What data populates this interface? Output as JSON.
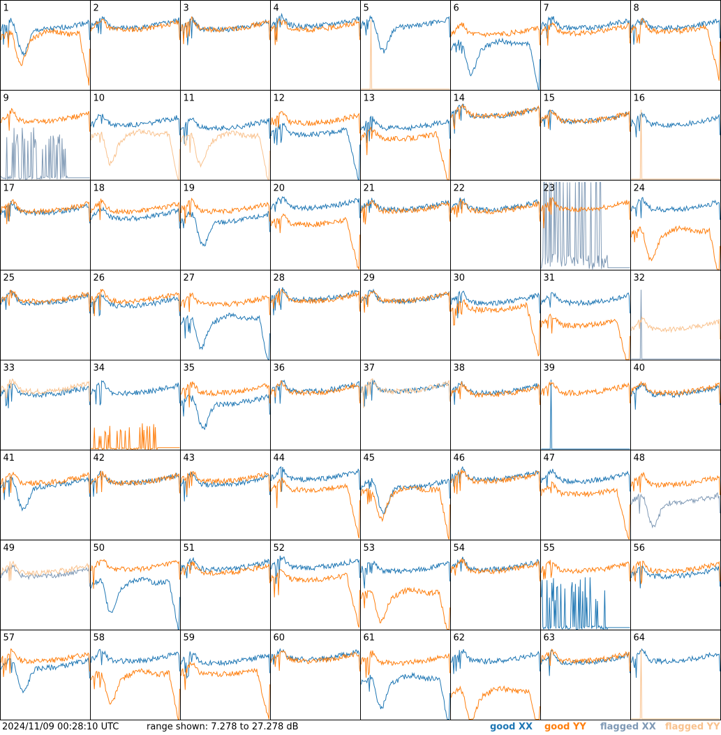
{
  "footer": {
    "timestamp": "2024/11/09 00:28:10 UTC",
    "range_text": "range shown: 7.278 to 27.278 dB",
    "legend": {
      "good_xx": "good XX",
      "good_yy": "good YY",
      "flagged_xx": "flagged XX",
      "flagged_yy": "flagged YY"
    }
  },
  "colors": {
    "good_xx": "#1f77b4",
    "good_yy": "#ff7f0e",
    "flagged_xx": "#7f99b5",
    "flagged_yy": "#f9c28e"
  },
  "chart_data": {
    "type": "line",
    "layout": "8x8 small-multiples, one panel per antenna tile",
    "ylim": [
      7.278,
      27.278
    ],
    "yunit": "dB",
    "panels": [
      {
        "label": "1",
        "xx": {
          "shape": "dip",
          "level": 0.72,
          "flag": false
        },
        "yy": {
          "shape": "dip_roll",
          "level": 0.62,
          "flag": false
        }
      },
      {
        "label": "2",
        "xx": {
          "shape": "normal",
          "level": 0.74,
          "flag": false
        },
        "yy": {
          "shape": "normal",
          "level": 0.72,
          "flag": false
        }
      },
      {
        "label": "3",
        "xx": {
          "shape": "normal",
          "level": 0.72,
          "flag": false
        },
        "yy": {
          "shape": "normal",
          "level": 0.72,
          "flag": false
        }
      },
      {
        "label": "4",
        "xx": {
          "shape": "normal",
          "level": 0.76,
          "flag": false
        },
        "yy": {
          "shape": "normal",
          "level": 0.72,
          "flag": false
        }
      },
      {
        "label": "5",
        "xx": {
          "shape": "dip",
          "level": 0.75,
          "flag": false
        },
        "yy": {
          "shape": "dead",
          "level": 0.0,
          "flag": true
        }
      },
      {
        "label": "6",
        "xx": {
          "shape": "dip_roll",
          "level": 0.5,
          "flag": false
        },
        "yy": {
          "shape": "normal",
          "level": 0.66,
          "flag": false
        }
      },
      {
        "label": "7",
        "xx": {
          "shape": "normal",
          "level": 0.74,
          "flag": false
        },
        "yy": {
          "shape": "normal",
          "level": 0.68,
          "flag": false
        }
      },
      {
        "label": "8",
        "xx": {
          "shape": "normal",
          "level": 0.74,
          "flag": false
        },
        "yy": {
          "shape": "roll",
          "level": 0.7,
          "flag": false
        }
      },
      {
        "label": "9",
        "xx": {
          "shape": "spiky_low",
          "level": 0.1,
          "flag": true
        },
        "yy": {
          "shape": "normal",
          "level": 0.7,
          "flag": false
        }
      },
      {
        "label": "10",
        "xx": {
          "shape": "normal",
          "level": 0.66,
          "flag": false
        },
        "yy": {
          "shape": "dip_roll",
          "level": 0.5,
          "flag": true
        }
      },
      {
        "label": "11",
        "xx": {
          "shape": "normal",
          "level": 0.62,
          "flag": false
        },
        "yy": {
          "shape": "dip_roll",
          "level": 0.48,
          "flag": true
        }
      },
      {
        "label": "12",
        "xx": {
          "shape": "roll",
          "level": 0.55,
          "flag": false
        },
        "yy": {
          "shape": "normal",
          "level": 0.68,
          "flag": false
        }
      },
      {
        "label": "13",
        "xx": {
          "shape": "normal",
          "level": 0.62,
          "flag": false
        },
        "yy": {
          "shape": "roll",
          "level": 0.5,
          "flag": false
        }
      },
      {
        "label": "14",
        "xx": {
          "shape": "normal",
          "level": 0.76,
          "flag": false
        },
        "yy": {
          "shape": "normal",
          "level": 0.76,
          "flag": false
        }
      },
      {
        "label": "15",
        "xx": {
          "shape": "normal",
          "level": 0.7,
          "flag": false
        },
        "yy": {
          "shape": "normal",
          "level": 0.7,
          "flag": false
        }
      },
      {
        "label": "16",
        "xx": {
          "shape": "normal",
          "level": 0.66,
          "flag": false
        },
        "yy": {
          "shape": "dead",
          "level": 0.0,
          "flag": true
        }
      },
      {
        "label": "17",
        "xx": {
          "shape": "normal",
          "level": 0.68,
          "flag": false
        },
        "yy": {
          "shape": "normal",
          "level": 0.7,
          "flag": false
        }
      },
      {
        "label": "18",
        "xx": {
          "shape": "normal",
          "level": 0.62,
          "flag": false
        },
        "yy": {
          "shape": "normal",
          "level": 0.7,
          "flag": false
        }
      },
      {
        "label": "19",
        "xx": {
          "shape": "dip",
          "level": 0.58,
          "flag": false
        },
        "yy": {
          "shape": "normal",
          "level": 0.7,
          "flag": false
        }
      },
      {
        "label": "20",
        "xx": {
          "shape": "normal",
          "level": 0.74,
          "flag": false
        },
        "yy": {
          "shape": "roll",
          "level": 0.55,
          "flag": false
        }
      },
      {
        "label": "21",
        "xx": {
          "shape": "normal",
          "level": 0.72,
          "flag": false
        },
        "yy": {
          "shape": "normal",
          "level": 0.7,
          "flag": false
        }
      },
      {
        "label": "22",
        "xx": {
          "shape": "normal",
          "level": 0.72,
          "flag": false
        },
        "yy": {
          "shape": "normal",
          "level": 0.7,
          "flag": false
        }
      },
      {
        "label": "23",
        "xx": {
          "shape": "spiky_low",
          "level": 0.45,
          "flag": true
        },
        "yy": {
          "shape": "normal",
          "level": 0.72,
          "flag": false
        }
      },
      {
        "label": "24",
        "xx": {
          "shape": "normal",
          "level": 0.72,
          "flag": false
        },
        "yy": {
          "shape": "dip_roll",
          "level": 0.42,
          "flag": false
        }
      },
      {
        "label": "25",
        "xx": {
          "shape": "normal",
          "level": 0.68,
          "flag": false
        },
        "yy": {
          "shape": "normal",
          "level": 0.7,
          "flag": false
        }
      },
      {
        "label": "26",
        "xx": {
          "shape": "normal",
          "level": 0.65,
          "flag": false
        },
        "yy": {
          "shape": "normal",
          "level": 0.7,
          "flag": false
        }
      },
      {
        "label": "27",
        "xx": {
          "shape": "dip_roll",
          "level": 0.45,
          "flag": false
        },
        "yy": {
          "shape": "normal",
          "level": 0.66,
          "flag": false
        }
      },
      {
        "label": "28",
        "xx": {
          "shape": "normal",
          "level": 0.72,
          "flag": false
        },
        "yy": {
          "shape": "normal",
          "level": 0.7,
          "flag": false
        }
      },
      {
        "label": "29",
        "xx": {
          "shape": "normal",
          "level": 0.7,
          "flag": false
        },
        "yy": {
          "shape": "normal",
          "level": 0.7,
          "flag": false
        }
      },
      {
        "label": "30",
        "xx": {
          "shape": "normal",
          "level": 0.68,
          "flag": false
        },
        "yy": {
          "shape": "roll",
          "level": 0.6,
          "flag": false
        }
      },
      {
        "label": "31",
        "xx": {
          "shape": "normal",
          "level": 0.68,
          "flag": false
        },
        "yy": {
          "shape": "roll",
          "level": 0.42,
          "flag": false
        }
      },
      {
        "label": "32",
        "xx": {
          "shape": "dead",
          "level": 0.0,
          "flag": true
        },
        "yy": {
          "shape": "normal",
          "level": 0.38,
          "flag": true
        }
      },
      {
        "label": "33",
        "xx": {
          "shape": "normal",
          "level": 0.66,
          "flag": false
        },
        "yy": {
          "shape": "normal",
          "level": 0.7,
          "flag": true
        }
      },
      {
        "label": "34",
        "xx": {
          "shape": "normal",
          "level": 0.68,
          "flag": false
        },
        "yy": {
          "shape": "spiky_low",
          "level": 0.05,
          "flag": false
        }
      },
      {
        "label": "35",
        "xx": {
          "shape": "dip",
          "level": 0.55,
          "flag": false
        },
        "yy": {
          "shape": "normal",
          "level": 0.68,
          "flag": false
        }
      },
      {
        "label": "36",
        "xx": {
          "shape": "normal",
          "level": 0.7,
          "flag": false
        },
        "yy": {
          "shape": "normal",
          "level": 0.68,
          "flag": false
        }
      },
      {
        "label": "37",
        "xx": {
          "shape": "normal",
          "level": 0.7,
          "flag": false
        },
        "yy": {
          "shape": "normal",
          "level": 0.7,
          "flag": true
        }
      },
      {
        "label": "38",
        "xx": {
          "shape": "normal",
          "level": 0.68,
          "flag": false
        },
        "yy": {
          "shape": "normal",
          "level": 0.66,
          "flag": false
        }
      },
      {
        "label": "39",
        "xx": {
          "shape": "dead",
          "level": 0.0,
          "flag": false
        },
        "yy": {
          "shape": "normal",
          "level": 0.68,
          "flag": false
        }
      },
      {
        "label": "40",
        "xx": {
          "shape": "normal",
          "level": 0.66,
          "flag": false
        },
        "yy": {
          "shape": "normal",
          "level": 0.68,
          "flag": false
        }
      },
      {
        "label": "41",
        "xx": {
          "shape": "dip",
          "level": 0.64,
          "flag": false
        },
        "yy": {
          "shape": "normal",
          "level": 0.68,
          "flag": false
        }
      },
      {
        "label": "42",
        "xx": {
          "shape": "normal",
          "level": 0.68,
          "flag": false
        },
        "yy": {
          "shape": "normal",
          "level": 0.68,
          "flag": false
        }
      },
      {
        "label": "43",
        "xx": {
          "shape": "normal",
          "level": 0.66,
          "flag": false
        },
        "yy": {
          "shape": "normal",
          "level": 0.7,
          "flag": false
        }
      },
      {
        "label": "44",
        "xx": {
          "shape": "normal",
          "level": 0.72,
          "flag": false
        },
        "yy": {
          "shape": "roll",
          "level": 0.6,
          "flag": false
        }
      },
      {
        "label": "45",
        "xx": {
          "shape": "dip",
          "level": 0.62,
          "flag": false
        },
        "yy": {
          "shape": "dip_roll",
          "level": 0.55,
          "flag": false
        }
      },
      {
        "label": "46",
        "xx": {
          "shape": "normal",
          "level": 0.72,
          "flag": false
        },
        "yy": {
          "shape": "normal",
          "level": 0.7,
          "flag": false
        }
      },
      {
        "label": "47",
        "xx": {
          "shape": "normal",
          "level": 0.7,
          "flag": false
        },
        "yy": {
          "shape": "roll",
          "level": 0.55,
          "flag": false
        }
      },
      {
        "label": "48",
        "xx": {
          "shape": "dip",
          "level": 0.45,
          "flag": true
        },
        "yy": {
          "shape": "normal",
          "level": 0.66,
          "flag": false
        }
      },
      {
        "label": "49",
        "xx": {
          "shape": "normal",
          "level": 0.64,
          "flag": true
        },
        "yy": {
          "shape": "normal",
          "level": 0.68,
          "flag": true
        }
      },
      {
        "label": "50",
        "xx": {
          "shape": "dip_roll",
          "level": 0.52,
          "flag": false
        },
        "yy": {
          "shape": "normal",
          "level": 0.72,
          "flag": false
        }
      },
      {
        "label": "51",
        "xx": {
          "shape": "normal",
          "level": 0.72,
          "flag": false
        },
        "yy": {
          "shape": "normal",
          "level": 0.68,
          "flag": false
        }
      },
      {
        "label": "52",
        "xx": {
          "shape": "normal",
          "level": 0.74,
          "flag": false
        },
        "yy": {
          "shape": "roll",
          "level": 0.6,
          "flag": false
        }
      },
      {
        "label": "53",
        "xx": {
          "shape": "normal",
          "level": 0.7,
          "flag": false
        },
        "yy": {
          "shape": "dip_roll",
          "level": 0.4,
          "flag": false
        }
      },
      {
        "label": "54",
        "xx": {
          "shape": "normal",
          "level": 0.72,
          "flag": false
        },
        "yy": {
          "shape": "normal",
          "level": 0.7,
          "flag": false
        }
      },
      {
        "label": "55",
        "xx": {
          "shape": "spiky_low",
          "level": 0.1,
          "flag": false
        },
        "yy": {
          "shape": "normal",
          "level": 0.7,
          "flag": false
        }
      },
      {
        "label": "56",
        "xx": {
          "shape": "normal",
          "level": 0.64,
          "flag": false
        },
        "yy": {
          "shape": "normal",
          "level": 0.7,
          "flag": false
        }
      },
      {
        "label": "57",
        "xx": {
          "shape": "dip",
          "level": 0.62,
          "flag": false
        },
        "yy": {
          "shape": "normal",
          "level": 0.7,
          "flag": false
        }
      },
      {
        "label": "58",
        "xx": {
          "shape": "normal",
          "level": 0.7,
          "flag": false
        },
        "yy": {
          "shape": "dip_roll",
          "level": 0.5,
          "flag": false
        }
      },
      {
        "label": "59",
        "xx": {
          "shape": "normal",
          "level": 0.68,
          "flag": false
        },
        "yy": {
          "shape": "roll",
          "level": 0.55,
          "flag": false
        }
      },
      {
        "label": "60",
        "xx": {
          "shape": "normal",
          "level": 0.72,
          "flag": false
        },
        "yy": {
          "shape": "normal",
          "level": 0.7,
          "flag": false
        }
      },
      {
        "label": "61",
        "xx": {
          "shape": "dip_roll",
          "level": 0.45,
          "flag": false
        },
        "yy": {
          "shape": "normal",
          "level": 0.68,
          "flag": false
        }
      },
      {
        "label": "62",
        "xx": {
          "shape": "normal",
          "level": 0.7,
          "flag": false
        },
        "yy": {
          "shape": "dip_roll",
          "level": 0.3,
          "flag": false
        }
      },
      {
        "label": "63",
        "xx": {
          "shape": "normal",
          "level": 0.68,
          "flag": false
        },
        "yy": {
          "shape": "normal",
          "level": 0.7,
          "flag": false
        }
      },
      {
        "label": "64",
        "xx": {
          "shape": "normal",
          "level": 0.7,
          "flag": false
        },
        "yy": {
          "shape": "dead",
          "level": 0.0,
          "flag": true
        }
      }
    ]
  }
}
